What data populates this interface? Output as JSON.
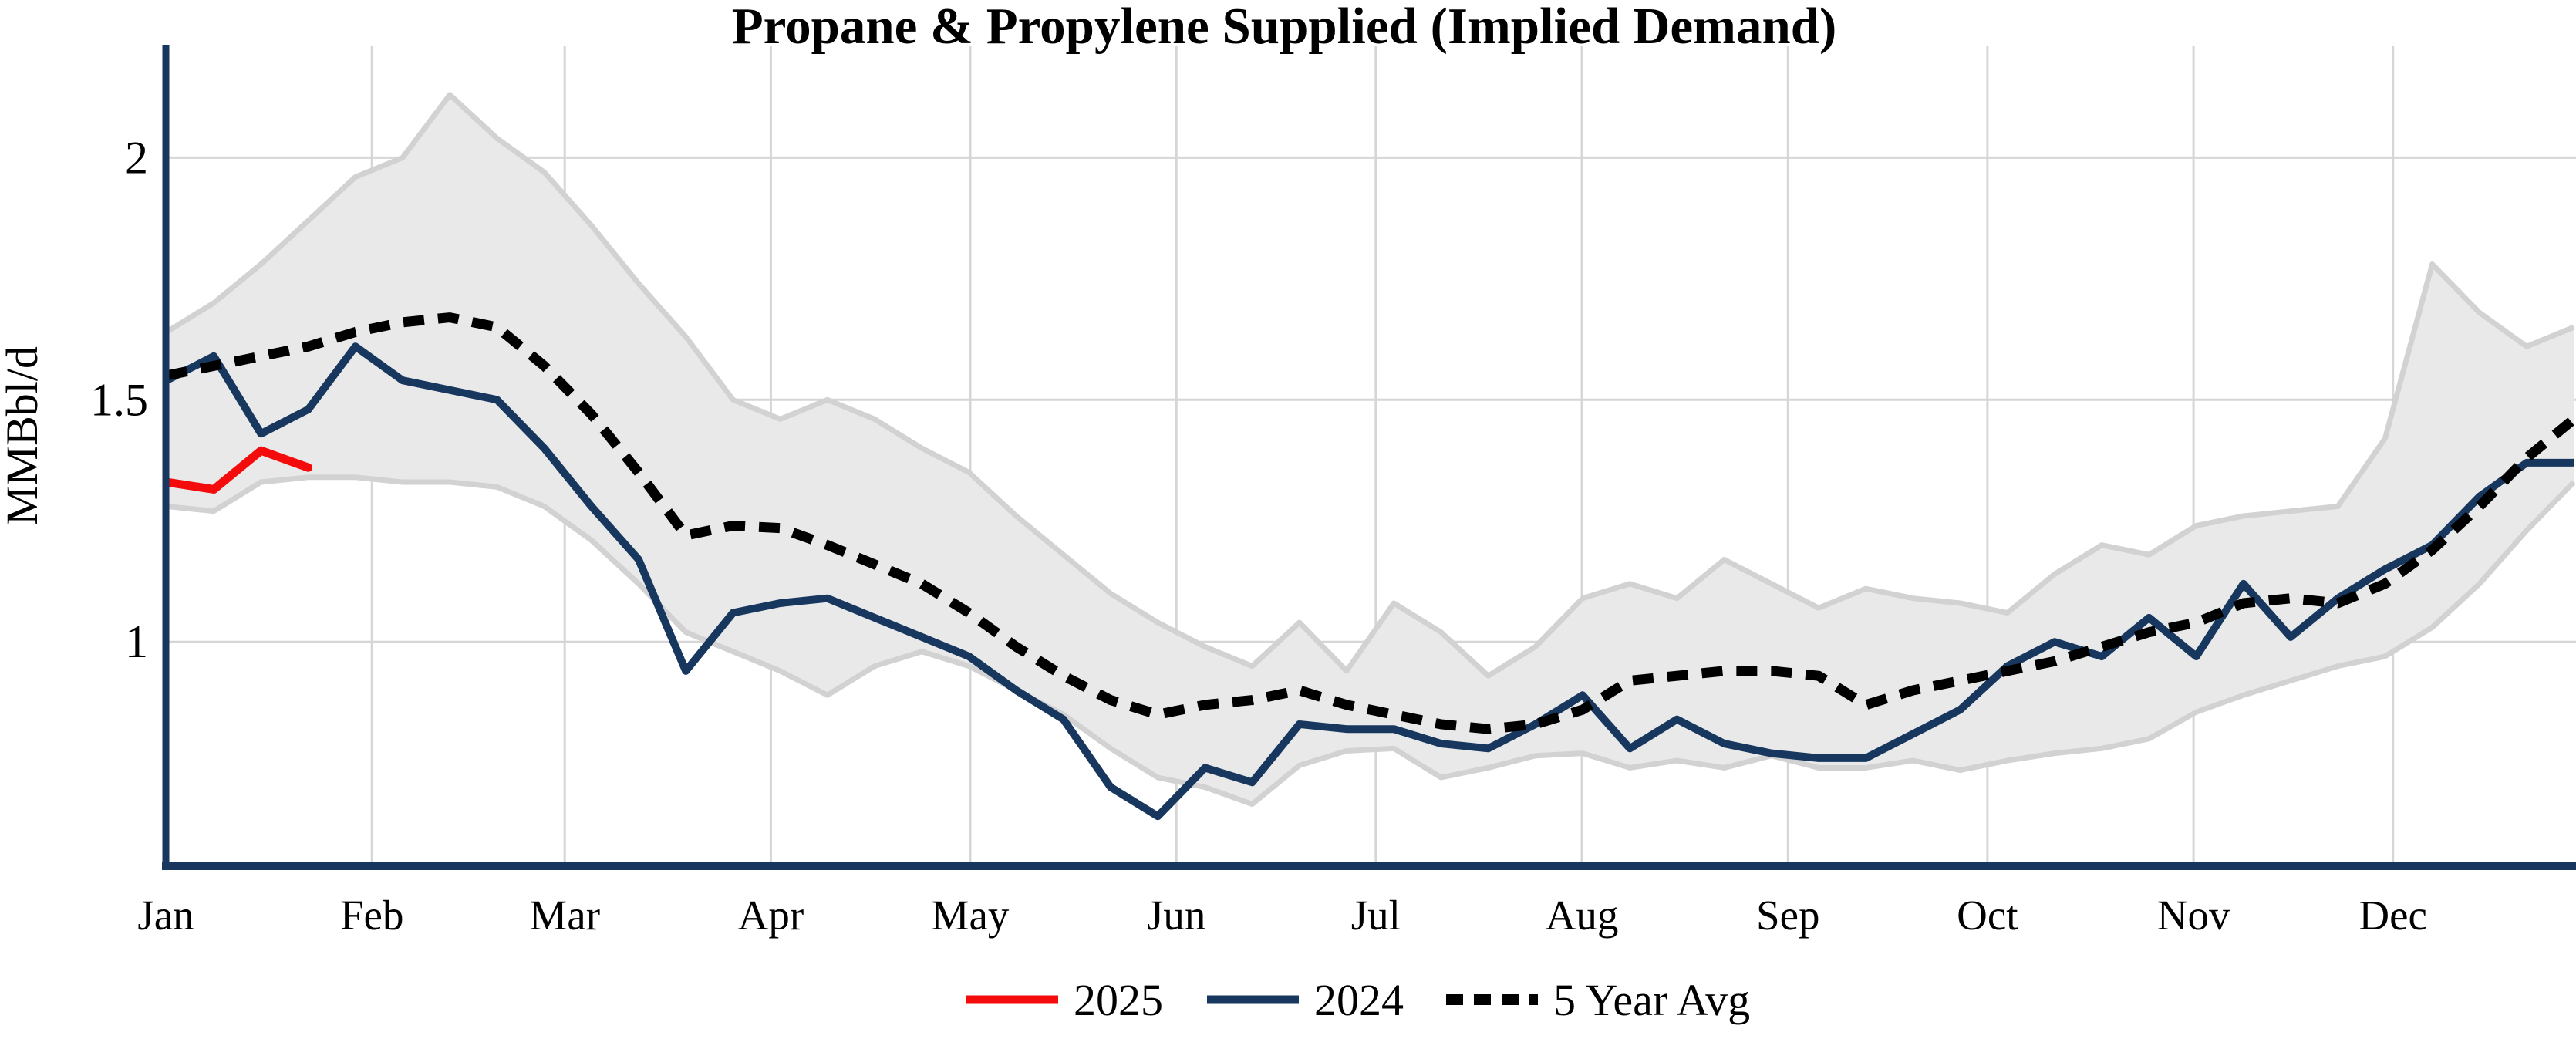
{
  "title": "Propane & Propylene Supplied (Implied Demand)",
  "y_axis": {
    "label": "MMBbl/d",
    "ticks": [
      "2",
      "1.5",
      "1"
    ],
    "tick_values": [
      2,
      1.5,
      1
    ]
  },
  "x_axis": {
    "months": [
      "Jan",
      "Feb",
      "Mar",
      "Apr",
      "May",
      "Jun",
      "Jul",
      "Aug",
      "Sep",
      "Oct",
      "Nov",
      "Dec"
    ]
  },
  "legend": [
    {
      "label": "2025",
      "color": "#f40b0b",
      "style": "solid"
    },
    {
      "label": "2024",
      "color": "#17375e",
      "style": "solid"
    },
    {
      "label": "5 Year Avg",
      "color": "#000000",
      "style": "dotted"
    }
  ],
  "colors": {
    "axis": "#17375e",
    "gridline": "#d6d6d6",
    "band_fill": "#e9e9e9",
    "band_edge": "#d2d2d2"
  },
  "chart_data": {
    "type": "line",
    "title": "Propane & Propylene Supplied (Implied Demand)",
    "xlabel": "",
    "ylabel": "MMBbl/d",
    "ylim": [
      0.54,
      2.23
    ],
    "yticks": [
      1,
      1.5,
      2
    ],
    "grid": true,
    "legend_position": "bottom",
    "x_unit": "weekly, Jan-Dec",
    "weeks": 52,
    "series": [
      {
        "name": "2025",
        "color": "#f40b0b",
        "style": "solid",
        "weeks_covered": 4,
        "values": [
          1.33,
          1.315,
          1.395,
          1.36
        ]
      },
      {
        "name": "2024",
        "color": "#17375e",
        "style": "solid",
        "values": [
          1.54,
          1.59,
          1.43,
          1.48,
          1.61,
          1.54,
          1.52,
          1.5,
          1.4,
          1.28,
          1.17,
          0.94,
          1.06,
          1.08,
          1.09,
          1.05,
          1.01,
          0.97,
          0.9,
          0.84,
          0.7,
          0.64,
          0.74,
          0.71,
          0.83,
          0.82,
          0.82,
          0.79,
          0.78,
          0.83,
          0.89,
          0.78,
          0.84,
          0.79,
          0.77,
          0.76,
          0.76,
          0.81,
          0.86,
          0.95,
          1.0,
          0.97,
          1.05,
          0.97,
          1.12,
          1.01,
          1.09,
          1.15,
          1.2,
          1.3,
          1.37,
          1.37
        ]
      },
      {
        "name": "5 Year Avg",
        "color": "#000000",
        "style": "dotted",
        "values": [
          1.55,
          1.57,
          1.59,
          1.61,
          1.64,
          1.66,
          1.67,
          1.65,
          1.57,
          1.47,
          1.35,
          1.22,
          1.24,
          1.235,
          1.2,
          1.16,
          1.12,
          1.06,
          0.99,
          0.93,
          0.88,
          0.85,
          0.87,
          0.88,
          0.9,
          0.87,
          0.85,
          0.83,
          0.82,
          0.83,
          0.86,
          0.92,
          0.93,
          0.94,
          0.94,
          0.93,
          0.87,
          0.9,
          0.92,
          0.94,
          0.96,
          0.99,
          1.02,
          1.04,
          1.08,
          1.09,
          1.08,
          1.12,
          1.19,
          1.28,
          1.38,
          1.46
        ]
      }
    ],
    "band": {
      "name": "5 Year Range",
      "upper": [
        1.64,
        1.7,
        1.78,
        1.87,
        1.96,
        2.0,
        2.13,
        2.04,
        1.97,
        1.86,
        1.74,
        1.63,
        1.5,
        1.46,
        1.5,
        1.46,
        1.4,
        1.35,
        1.26,
        1.18,
        1.1,
        1.04,
        0.99,
        0.95,
        1.04,
        0.94,
        1.08,
        1.02,
        0.93,
        0.99,
        1.09,
        1.12,
        1.09,
        1.17,
        1.12,
        1.07,
        1.11,
        1.09,
        1.08,
        1.06,
        1.14,
        1.2,
        1.18,
        1.24,
        1.26,
        1.27,
        1.28,
        1.42,
        1.78,
        1.68,
        1.61,
        1.65
      ],
      "lower": [
        1.28,
        1.27,
        1.33,
        1.34,
        1.34,
        1.33,
        1.33,
        1.32,
        1.28,
        1.21,
        1.12,
        1.02,
        0.98,
        0.94,
        0.89,
        0.95,
        0.98,
        0.95,
        0.9,
        0.85,
        0.78,
        0.72,
        0.7,
        0.665,
        0.745,
        0.775,
        0.78,
        0.72,
        0.74,
        0.765,
        0.77,
        0.74,
        0.755,
        0.74,
        0.765,
        0.74,
        0.74,
        0.755,
        0.735,
        0.755,
        0.77,
        0.78,
        0.8,
        0.855,
        0.89,
        0.92,
        0.95,
        0.97,
        1.03,
        1.12,
        1.23,
        1.33
      ]
    }
  }
}
